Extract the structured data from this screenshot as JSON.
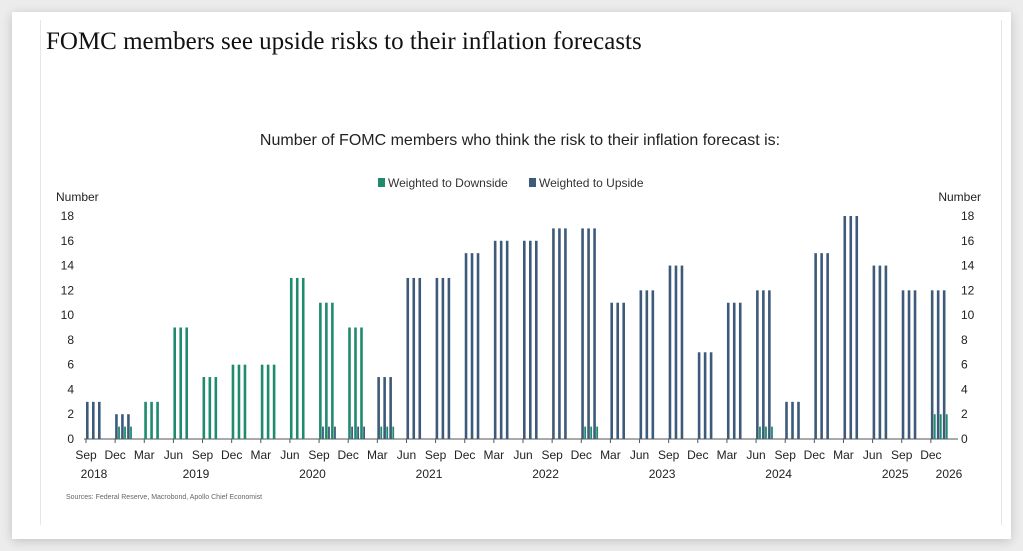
{
  "headline": "FOMC members see upside risks to their inflation forecasts",
  "chart_data": {
    "type": "bar",
    "title": "Number of FOMC members who think the risk to their inflation forecast is:",
    "ylabel_left": "Number",
    "ylabel_right": "Number",
    "ylim": [
      0,
      18
    ],
    "yticks": [
      0,
      2,
      4,
      6,
      8,
      10,
      12,
      14,
      16,
      18
    ],
    "legend": [
      "Weighted to Downside",
      "Weighted to Upside"
    ],
    "colors": {
      "downside": "#1f8a6e",
      "upside": "#3d5a7a"
    },
    "x_month_labels": [
      "Sep",
      "Dec",
      "Mar",
      "Jun",
      "Sep",
      "Dec",
      "Mar",
      "Jun",
      "Sep",
      "Dec",
      "Mar",
      "Jun",
      "Sep",
      "Dec",
      "Mar",
      "Jun",
      "Sep",
      "Dec",
      "Mar",
      "Jun",
      "Sep",
      "Dec",
      "Mar",
      "Jun",
      "Sep",
      "Dec",
      "Mar",
      "Jun",
      "Sep",
      "Dec"
    ],
    "x_year_labels": [
      "2018",
      "2019",
      "2020",
      "2021",
      "2022",
      "2023",
      "2024",
      "2025",
      "2026"
    ],
    "meetings": [
      "Sep 2018",
      "Dec 2018",
      "Mar 2019",
      "Jun 2019",
      "Sep 2019",
      "Dec 2019",
      "Mar 2020",
      "Jun 2020",
      "Sep 2020",
      "Dec 2020",
      "Mar 2021",
      "Jun 2021",
      "Sep 2021",
      "Dec 2021",
      "Mar 2022",
      "Jun 2022",
      "Sep 2022",
      "Dec 2022",
      "Mar 2023",
      "Jun 2023",
      "Sep 2023",
      "Dec 2023",
      "Mar 2024",
      "Jun 2024",
      "Sep 2024",
      "Dec 2024",
      "Mar 2025",
      "Jun 2025",
      "Sep 2025",
      "Dec 2025"
    ],
    "series": [
      {
        "name": "Weighted to Downside",
        "values": [
          0,
          1,
          3,
          9,
          5,
          6,
          6,
          13,
          11,
          9,
          1,
          0,
          0,
          0,
          0,
          0,
          0,
          1,
          0,
          0,
          0,
          0,
          0,
          1,
          0,
          0,
          0,
          0,
          0,
          2
        ]
      },
      {
        "name": "Weighted to Upside",
        "values": [
          3,
          2,
          0,
          0,
          0,
          0,
          0,
          0,
          1,
          1,
          5,
          13,
          13,
          15,
          16,
          16,
          17,
          17,
          11,
          12,
          14,
          7,
          11,
          12,
          3,
          15,
          18,
          14,
          12,
          12
        ]
      }
    ],
    "source": "Sources: Federal Reserve, Macrobond, Apollo Chief Economist"
  }
}
